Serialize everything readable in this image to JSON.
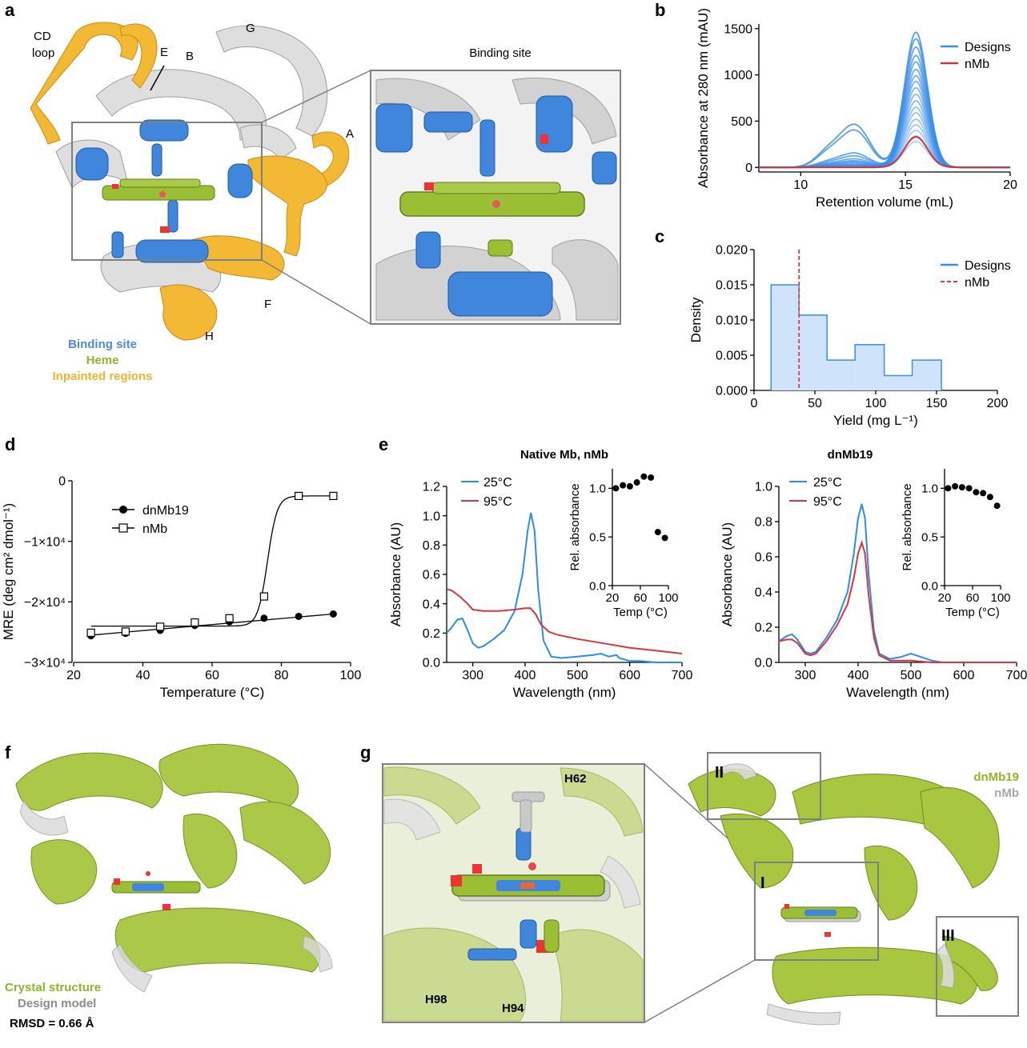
{
  "panel_letters": {
    "a": "a",
    "b": "b",
    "c": "c",
    "d": "d",
    "e": "e",
    "f": "f",
    "g": "g"
  },
  "panel_a": {
    "helix_labels": {
      "cd_loop_1": "CD",
      "cd_loop_2": "loop",
      "E": "E",
      "B": "B",
      "G": "G",
      "A": "A",
      "F": "F",
      "H": "H"
    },
    "inset_title": "Binding site",
    "legend": [
      {
        "label": "Binding site",
        "color": "#4a8be0"
      },
      {
        "label": "Heme",
        "color": "#8db52a"
      },
      {
        "label": "Inpainted regions",
        "color": "#f2b32c"
      }
    ],
    "colors": {
      "binding_site": "#3f86dc",
      "heme": "#9abf34",
      "inpainted": "#f4b934",
      "backbone": "#d9d9d9"
    }
  },
  "panel_f": {
    "legend": [
      {
        "label": "Crystal structure",
        "color": "#8db52a"
      },
      {
        "label": "Design model",
        "color": "#8c8c8c"
      }
    ],
    "rmsd": "RMSD = 0.66 Å"
  },
  "panel_g": {
    "residue_labels": {
      "h62": "H62",
      "h98": "H98",
      "h94": "H94"
    },
    "box_labels": {
      "I": "I",
      "II": "II",
      "III": "III"
    },
    "legend": [
      {
        "label": "dnMb19",
        "color": "#8db52a"
      },
      {
        "label": "nMb",
        "color": "#a6a6a6"
      }
    ]
  },
  "chart_data": [
    {
      "id": "b",
      "type": "line",
      "title": "",
      "xlabel": "Retention volume (mL)",
      "ylabel": "Absorbance at 280 nm (mAU)",
      "xlim": [
        8,
        20
      ],
      "ylim": [
        -50,
        1550
      ],
      "xticks": [
        10,
        15,
        20
      ],
      "yticks": [
        0,
        500,
        1000,
        1500
      ],
      "xtick_labels": [
        "10",
        "15",
        "20"
      ],
      "ytick_labels": [
        "0",
        "500",
        "1000",
        "1500"
      ],
      "legend": [
        {
          "label": "Designs",
          "color": "#3a8ee6"
        },
        {
          "label": "nMb",
          "color": "#d0323a"
        }
      ],
      "designs_peak_heights": [
        1460,
        1390,
        1300,
        1210,
        1140,
        1060,
        990,
        930,
        860,
        790,
        720,
        650,
        590,
        520,
        460,
        400,
        340,
        280
      ],
      "designs_shoulder_heights": [
        450,
        390,
        150,
        120,
        90,
        70,
        60,
        50,
        40,
        30,
        30,
        20,
        20,
        15,
        10,
        10,
        10,
        5
      ],
      "nMb_peak_height": 330,
      "peak_position": 15.5,
      "shoulder_position": 12.6
    },
    {
      "id": "c",
      "type": "bar",
      "title": "",
      "xlabel": "Yield (mg L⁻¹)",
      "ylabel": "Density",
      "xlim": [
        0,
        200
      ],
      "ylim": [
        0,
        0.02
      ],
      "xticks": [
        0,
        50,
        100,
        150,
        200
      ],
      "yticks": [
        0,
        0.005,
        0.01,
        0.015,
        0.02
      ],
      "xtick_labels": [
        "0",
        "50",
        "100",
        "150",
        "200"
      ],
      "ytick_labels": [
        "0.000",
        "0.005",
        "0.010",
        "0.015",
        "0.020"
      ],
      "legend": [
        {
          "label": "Designs",
          "color": "#3a8ee6"
        },
        {
          "label": "nMb",
          "color": "#e0393f"
        }
      ],
      "bin_edges": [
        14,
        37,
        60,
        83,
        107,
        130,
        154
      ],
      "densities": [
        0.015,
        0.0107,
        0.0043,
        0.0065,
        0.0021,
        0.0043
      ],
      "nMb_yield": 37
    },
    {
      "id": "d",
      "type": "scatter",
      "title": "",
      "xlabel": "Temperature (°C)",
      "ylabel": "MRE (deg cm² dmol⁻¹)",
      "xlim": [
        20,
        100
      ],
      "ylim": [
        -30000,
        0
      ],
      "xticks": [
        20,
        40,
        60,
        80,
        100
      ],
      "yticks": [
        0,
        -10000,
        -20000,
        -30000
      ],
      "xtick_labels": [
        "20",
        "40",
        "60",
        "80",
        "100"
      ],
      "ytick_labels": [
        "0",
        "−1×10⁴",
        "−2×10⁴",
        "−3×10⁴"
      ],
      "series": [
        {
          "name": "dnMb19",
          "marker": "filled-circle",
          "x": [
            25,
            35,
            45,
            55,
            65,
            75,
            85,
            95
          ],
          "y": [
            -25600,
            -25200,
            -24700,
            -23900,
            -23300,
            -22700,
            -22400,
            -22000
          ]
        },
        {
          "name": "nMb",
          "marker": "open-square",
          "x": [
            25,
            35,
            45,
            55,
            65,
            75,
            85,
            95
          ],
          "y": [
            -25100,
            -24900,
            -24100,
            -23400,
            -22700,
            -19100,
            -2500,
            -2500
          ]
        }
      ],
      "fit_lines": {
        "dnMb19": {
          "x0": 25,
          "y0": -25500,
          "x1": 95,
          "y1": -22000
        },
        "nMb": {
          "base": -24000,
          "top": -2500,
          "midpoint": 76,
          "slope": 1.4
        }
      }
    },
    {
      "id": "e_left",
      "type": "line",
      "title": "Native Mb, nMb",
      "xlabel": "Wavelength (nm)",
      "ylabel": "Absorbance (AU)",
      "xlim": [
        250,
        700
      ],
      "ylim": [
        0,
        1.2
      ],
      "xticks": [
        300,
        400,
        500,
        600,
        700
      ],
      "yticks": [
        0,
        0.2,
        0.4,
        0.6,
        0.8,
        1.0,
        1.2
      ],
      "xtick_labels": [
        "300",
        "400",
        "500",
        "600",
        "700"
      ],
      "ytick_labels": [
        "0.0",
        "0.2",
        "0.4",
        "0.6",
        "0.8",
        "1.0",
        "1.2"
      ],
      "series": [
        {
          "name": "25°C",
          "color": "#2a8de6",
          "x": [
            250,
            260,
            270,
            280,
            290,
            300,
            310,
            320,
            340,
            360,
            380,
            395,
            405,
            411,
            418,
            425,
            435,
            450,
            470,
            500,
            530,
            545,
            560,
            575,
            580,
            590,
            600,
            620,
            650,
            700
          ],
          "y": [
            0.2,
            0.24,
            0.29,
            0.3,
            0.22,
            0.13,
            0.1,
            0.11,
            0.16,
            0.22,
            0.35,
            0.6,
            0.9,
            1.02,
            0.9,
            0.5,
            0.15,
            0.04,
            0.03,
            0.04,
            0.05,
            0.06,
            0.04,
            0.05,
            0.03,
            0.02,
            0.01,
            0.01,
            0.0,
            0.0
          ]
        },
        {
          "name": "95°C",
          "color": "#d6363c",
          "x": [
            250,
            260,
            275,
            290,
            300,
            320,
            350,
            380,
            400,
            410,
            420,
            430,
            445,
            460,
            500,
            550,
            600,
            650,
            700
          ],
          "y": [
            0.5,
            0.49,
            0.45,
            0.4,
            0.36,
            0.35,
            0.35,
            0.36,
            0.37,
            0.37,
            0.33,
            0.26,
            0.21,
            0.19,
            0.16,
            0.13,
            0.1,
            0.08,
            0.06
          ]
        }
      ],
      "inset": {
        "xlabel": "Temp (°C)",
        "ylabel": "Rel. absorbance",
        "xlim": [
          20,
          100
        ],
        "ylim": [
          0,
          1.2
        ],
        "xticks": [
          20,
          60,
          100
        ],
        "yticks": [
          0,
          0.5,
          1.0
        ],
        "xtick_labels": [
          "20",
          "60",
          "100"
        ],
        "ytick_labels": [
          "0.0",
          "0.5",
          "1.0"
        ],
        "x": [
          25,
          35,
          45,
          55,
          65,
          75,
          85,
          95
        ],
        "y": [
          1.0,
          1.03,
          1.02,
          1.06,
          1.12,
          1.11,
          0.55,
          0.49
        ]
      }
    },
    {
      "id": "e_right",
      "type": "line",
      "title": "dnMb19",
      "xlabel": "Wavelength (nm)",
      "ylabel": "Absorbance (AU)",
      "xlim": [
        250,
        700
      ],
      "ylim": [
        0,
        1.0
      ],
      "xticks": [
        300,
        400,
        500,
        600,
        700
      ],
      "yticks": [
        0,
        0.2,
        0.4,
        0.6,
        0.8,
        1.0
      ],
      "xtick_labels": [
        "300",
        "400",
        "500",
        "600",
        "700"
      ],
      "ytick_labels": [
        "0.0",
        "0.2",
        "0.4",
        "0.6",
        "0.8",
        "1.0"
      ],
      "series": [
        {
          "name": "25°C",
          "color": "#2a8de6",
          "x": [
            250,
            265,
            275,
            285,
            300,
            310,
            320,
            340,
            360,
            380,
            392,
            400,
            407,
            413,
            420,
            430,
            440,
            460,
            480,
            500,
            520,
            540,
            560,
            600,
            700
          ],
          "y": [
            0.12,
            0.15,
            0.16,
            0.13,
            0.06,
            0.05,
            0.06,
            0.14,
            0.24,
            0.4,
            0.62,
            0.82,
            0.9,
            0.82,
            0.5,
            0.18,
            0.05,
            0.02,
            0.03,
            0.05,
            0.03,
            0.01,
            0.0,
            0.0,
            0.0
          ]
        },
        {
          "name": "95°C",
          "color": "#d6363c",
          "x": [
            250,
            265,
            275,
            285,
            300,
            310,
            320,
            340,
            360,
            380,
            392,
            400,
            407,
            413,
            420,
            430,
            440,
            460,
            480,
            500,
            540,
            600,
            700
          ],
          "y": [
            0.12,
            0.13,
            0.13,
            0.11,
            0.05,
            0.04,
            0.05,
            0.12,
            0.21,
            0.33,
            0.48,
            0.62,
            0.68,
            0.62,
            0.38,
            0.14,
            0.04,
            0.01,
            0.01,
            0.01,
            0.0,
            0.0,
            0.0
          ]
        }
      ],
      "inset": {
        "xlabel": "Temp (°C)",
        "ylabel": "Rel. absorbance",
        "xlim": [
          20,
          100
        ],
        "ylim": [
          0,
          1.2
        ],
        "xticks": [
          20,
          60,
          100
        ],
        "yticks": [
          0,
          0.5,
          1.0
        ],
        "xtick_labels": [
          "20",
          "60",
          "100"
        ],
        "ytick_labels": [
          "0.0",
          "0.5",
          "1.0"
        ],
        "x": [
          25,
          35,
          45,
          55,
          65,
          75,
          85,
          95
        ],
        "y": [
          1.0,
          1.02,
          1.01,
          1.0,
          0.96,
          0.95,
          0.91,
          0.82
        ]
      }
    }
  ]
}
